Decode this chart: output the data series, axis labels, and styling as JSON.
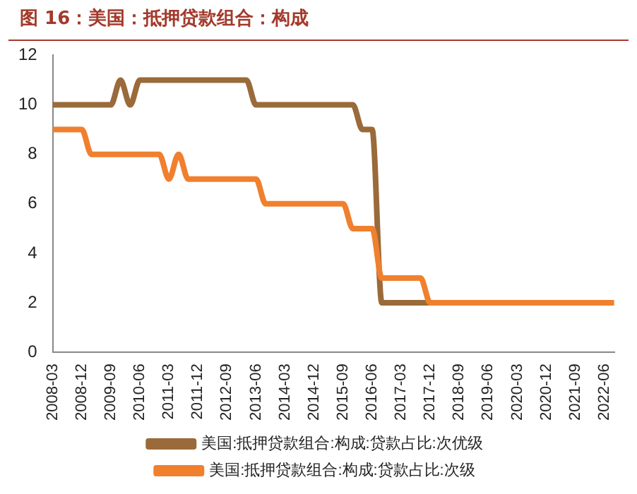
{
  "chart_data": {
    "type": "line",
    "title": "图 16：美国：抵押贷款组合：构成",
    "categories": [
      "2008-03",
      null,
      null,
      "2008-12",
      null,
      null,
      "2009-09",
      null,
      null,
      "2010-06",
      null,
      null,
      "2011-03",
      null,
      null,
      "2011-12",
      null,
      null,
      "2012-09",
      null,
      null,
      "2013-06",
      null,
      null,
      "2014-03",
      null,
      null,
      "2014-12",
      null,
      null,
      "2015-09",
      null,
      null,
      "2016-06",
      null,
      null,
      "2017-03",
      null,
      null,
      "2017-12",
      null,
      null,
      "2018-09",
      null,
      null,
      "2019-06",
      null,
      null,
      "2020-03",
      null,
      null,
      "2020-12",
      null,
      null,
      "2021-09",
      null,
      null,
      "2022-06",
      null
    ],
    "series": [
      {
        "name": "美国:抵押贷款组合:构成:贷款占比:次优级",
        "color": "#9a6a3a",
        "values": [
          10,
          10,
          10,
          10,
          10,
          10,
          10,
          11,
          10,
          11,
          11,
          11,
          11,
          11,
          11,
          11,
          11,
          11,
          11,
          11,
          11,
          10,
          10,
          10,
          10,
          10,
          10,
          10,
          10,
          10,
          10,
          10,
          9,
          9,
          2,
          2,
          2,
          2,
          2,
          2,
          null,
          null,
          null,
          null,
          null,
          null,
          null,
          null,
          null,
          null,
          null,
          null,
          null,
          null,
          null,
          null,
          null,
          null,
          null
        ]
      },
      {
        "name": "美国:抵押贷款组合:构成:贷款占比:次级",
        "color": "#f0802e",
        "values": [
          9,
          9,
          9,
          9,
          8,
          8,
          8,
          8,
          8,
          8,
          8,
          8,
          7,
          8,
          7,
          7,
          7,
          7,
          7,
          7,
          7,
          7,
          6,
          6,
          6,
          6,
          6,
          6,
          6,
          6,
          6,
          5,
          5,
          5,
          3,
          3,
          3,
          3,
          3,
          2,
          2,
          2,
          2,
          2,
          2,
          2,
          2,
          2,
          2,
          2,
          2,
          2,
          2,
          2,
          2,
          2,
          2,
          2,
          2
        ]
      }
    ],
    "ylim": [
      0,
      12
    ],
    "yticks": [
      0,
      2,
      4,
      6,
      8,
      10,
      12
    ],
    "grid": false,
    "legend": "bottom",
    "marker": "none",
    "line_style": "solid"
  }
}
